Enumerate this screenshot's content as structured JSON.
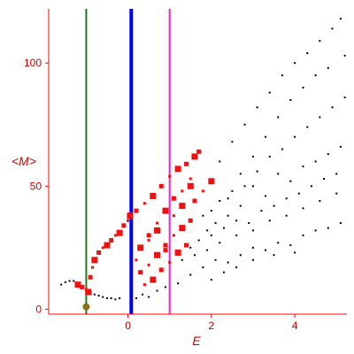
{
  "chart_data": {
    "type": "scatter",
    "title": "",
    "xlabel": "E",
    "ylabel": "<M>",
    "xlim": [
      -1.9,
      5.25
    ],
    "ylim": [
      -2,
      122
    ],
    "x_ticks": [
      0,
      2,
      4
    ],
    "y_ticks": [
      0,
      50,
      100
    ],
    "grid": false,
    "colors": {
      "axis": "#ff0000",
      "tick_text": "#d40000",
      "black_points": "#000000",
      "red_points": "#ee1111",
      "ground_point": "#8b6d1a",
      "line_green": "#1e7a1e",
      "line_blue": "#0000ff",
      "line_magenta": "#ee22cc"
    },
    "vertical_lines": [
      {
        "x": -1.0,
        "color": "#1e7a1e"
      },
      {
        "x": 0.08,
        "color": "#0000ff"
      },
      {
        "x": 1.0,
        "color": "#ee22cc"
      }
    ],
    "series": [
      {
        "marker": "small black dots",
        "points": [
          [
            -1.6,
            10.0
          ],
          [
            -1.5,
            11.0
          ],
          [
            -1.4,
            11.5
          ],
          [
            -1.3,
            11.5
          ],
          [
            -1.2,
            10.5
          ],
          [
            -0.8,
            6.0
          ],
          [
            -0.7,
            5.5
          ],
          [
            -0.6,
            5.0
          ],
          [
            -0.5,
            4.5
          ],
          [
            -0.4,
            4.5
          ],
          [
            -0.3,
            4.0
          ],
          [
            -0.2,
            4.5
          ],
          [
            0.2,
            4.5
          ],
          [
            0.35,
            6.0
          ],
          [
            0.5,
            5.0
          ],
          [
            0.7,
            7.5
          ],
          [
            0.9,
            9.0
          ],
          [
            1.2,
            10.5
          ],
          [
            1.5,
            14.0
          ],
          [
            1.8,
            17.0
          ],
          [
            2.1,
            20.0
          ],
          [
            2.4,
            19.0
          ],
          [
            2.7,
            22.0
          ],
          [
            3.0,
            25.0
          ],
          [
            3.3,
            24.0
          ],
          [
            3.6,
            27.0
          ],
          [
            3.9,
            26.0
          ],
          [
            4.2,
            30.0
          ],
          [
            4.5,
            32.0
          ],
          [
            4.8,
            33.0
          ],
          [
            5.1,
            35.0
          ],
          [
            1.5,
            25.0
          ],
          [
            1.7,
            28.0
          ],
          [
            2.0,
            30.0
          ],
          [
            2.3,
            33.0
          ],
          [
            2.6,
            36.0
          ],
          [
            2.9,
            35.0
          ],
          [
            3.2,
            40.0
          ],
          [
            3.5,
            42.0
          ],
          [
            3.8,
            45.0
          ],
          [
            4.1,
            47.0
          ],
          [
            4.4,
            50.0
          ],
          [
            4.7,
            53.0
          ],
          [
            5.0,
            55.0
          ],
          [
            1.8,
            38.0
          ],
          [
            2.0,
            40.0
          ],
          [
            2.2,
            44.0
          ],
          [
            2.5,
            48.0
          ],
          [
            2.8,
            50.0
          ],
          [
            3.1,
            56.0
          ],
          [
            3.4,
            62.0
          ],
          [
            3.7,
            65.0
          ],
          [
            4.0,
            70.0
          ],
          [
            4.3,
            74.0
          ],
          [
            4.6,
            78.0
          ],
          [
            4.9,
            82.0
          ],
          [
            5.2,
            86.0
          ],
          [
            2.2,
            60.0
          ],
          [
            2.5,
            68.0
          ],
          [
            2.8,
            75.0
          ],
          [
            3.1,
            82.0
          ],
          [
            3.4,
            88.0
          ],
          [
            3.7,
            95.0
          ],
          [
            4.0,
            100.0
          ],
          [
            4.3,
            104.0
          ],
          [
            4.6,
            109.0
          ],
          [
            4.9,
            114.0
          ],
          [
            5.1,
            118.0
          ],
          [
            2.4,
            45.0
          ],
          [
            2.7,
            42.0
          ],
          [
            3.0,
            50.0
          ],
          [
            3.3,
            46.0
          ],
          [
            3.6,
            55.0
          ],
          [
            3.9,
            52.0
          ],
          [
            4.2,
            58.0
          ],
          [
            4.5,
            60.0
          ],
          [
            4.8,
            63.0
          ],
          [
            5.1,
            66.0
          ],
          [
            1.9,
            32.0
          ],
          [
            2.2,
            27.0
          ],
          [
            2.6,
            30.0
          ],
          [
            3.0,
            32.0
          ],
          [
            3.4,
            36.0
          ],
          [
            3.8,
            38.0
          ],
          [
            4.2,
            41.0
          ],
          [
            4.6,
            44.0
          ],
          [
            5.0,
            47.0
          ],
          [
            2.0,
            12.0
          ],
          [
            2.3,
            15.0
          ],
          [
            2.6,
            17.0
          ],
          [
            3.0,
            20.0
          ],
          [
            3.5,
            22.0
          ],
          [
            4.0,
            23.0
          ],
          [
            1.3,
            20.0
          ],
          [
            1.6,
            22.0
          ],
          [
            1.9,
            24.0
          ],
          [
            2.1,
            35.0
          ],
          [
            2.4,
            38.0
          ],
          [
            2.7,
            55.0
          ],
          [
            3.0,
            62.0
          ],
          [
            3.3,
            70.0
          ],
          [
            3.6,
            78.0
          ],
          [
            3.9,
            85.0
          ],
          [
            4.2,
            90.0
          ],
          [
            4.5,
            95.0
          ],
          [
            4.8,
            98.0
          ],
          [
            5.2,
            103.0
          ]
        ]
      },
      {
        "marker": "red squares",
        "points": [
          [
            -1.2,
            10.0
          ],
          [
            -1.1,
            9.0
          ],
          [
            -1.0,
            8.0
          ],
          [
            -0.95,
            7.0
          ],
          [
            -0.9,
            13.0
          ],
          [
            -0.85,
            17.0
          ],
          [
            -0.8,
            20.0
          ],
          [
            -0.7,
            23.0
          ],
          [
            -0.6,
            25.0
          ],
          [
            -0.5,
            26.0
          ],
          [
            -0.4,
            28.0
          ],
          [
            -0.3,
            30.0
          ],
          [
            -0.2,
            31.0
          ],
          [
            -0.1,
            34.0
          ],
          [
            0.0,
            36.0
          ],
          [
            0.05,
            38.0
          ],
          [
            0.2,
            40.0
          ],
          [
            0.4,
            43.0
          ],
          [
            0.6,
            46.0
          ],
          [
            0.8,
            50.0
          ],
          [
            1.0,
            54.0
          ],
          [
            1.2,
            57.0
          ],
          [
            1.4,
            59.0
          ],
          [
            1.5,
            53.0
          ],
          [
            1.6,
            62.0
          ],
          [
            1.7,
            64.0
          ],
          [
            0.2,
            20.0
          ],
          [
            0.3,
            25.0
          ],
          [
            0.5,
            30.0
          ],
          [
            0.7,
            35.0
          ],
          [
            0.9,
            40.0
          ],
          [
            1.1,
            45.0
          ],
          [
            1.3,
            48.0
          ],
          [
            1.5,
            50.0
          ],
          [
            0.3,
            15.0
          ],
          [
            0.5,
            18.0
          ],
          [
            0.7,
            22.0
          ],
          [
            0.9,
            26.0
          ],
          [
            1.1,
            30.0
          ],
          [
            1.3,
            33.0
          ],
          [
            1.5,
            36.0
          ],
          [
            0.4,
            10.0
          ],
          [
            0.6,
            12.0
          ],
          [
            0.8,
            16.0
          ],
          [
            1.0,
            19.0
          ],
          [
            1.2,
            23.0
          ],
          [
            1.4,
            26.0
          ],
          [
            0.5,
            28.0
          ],
          [
            0.7,
            32.0
          ],
          [
            0.9,
            24.0
          ],
          [
            1.1,
            38.0
          ],
          [
            1.3,
            42.0
          ],
          [
            1.6,
            44.0
          ],
          [
            1.8,
            48.0
          ],
          [
            2.0,
            52.0
          ]
        ]
      },
      {
        "marker": "olive ground-state point",
        "points": [
          [
            -1.0,
            1.0
          ]
        ]
      }
    ]
  }
}
